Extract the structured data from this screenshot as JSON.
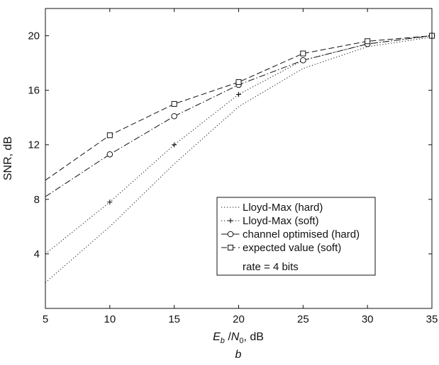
{
  "chart_data": {
    "type": "line",
    "xlabel_main": "E",
    "xlabel_main_sub": "b",
    "xlabel_sep": " /",
    "xlabel_den": "N",
    "xlabel_den_sub": "0",
    "xlabel_unit": ", dB",
    "ylabel": "SNR, dB",
    "caption": "b",
    "xlim": [
      5,
      35
    ],
    "ylim": [
      0,
      22
    ],
    "xticks": [
      5,
      10,
      15,
      20,
      25,
      30,
      35
    ],
    "yticks": [
      4,
      8,
      12,
      16,
      20
    ],
    "grid": false,
    "legend_position": "bottom-right",
    "legend_note": "rate = 4 bits",
    "series": [
      {
        "name": "Lloyd-Max (hard)",
        "style": "dotted",
        "marker": "none",
        "x": [
          5,
          10,
          15,
          20,
          25,
          30,
          35
        ],
        "y": [
          1.9,
          6.0,
          10.6,
          14.8,
          17.6,
          19.2,
          19.9
        ]
      },
      {
        "name": "Lloyd-Max (soft)",
        "style": "dotted",
        "marker": "plus",
        "x": [
          5,
          10,
          15,
          20,
          25,
          30,
          35
        ],
        "y": [
          4.0,
          7.8,
          12.0,
          15.7,
          18.2,
          19.4,
          20.0
        ]
      },
      {
        "name": "channel optimised (hard)",
        "style": "dashdot",
        "marker": "circle",
        "x": [
          5,
          10,
          15,
          20,
          25,
          30,
          35
        ],
        "y": [
          8.2,
          11.3,
          14.1,
          16.4,
          18.2,
          19.4,
          20.0
        ]
      },
      {
        "name": "expected value (soft)",
        "style": "dashed",
        "marker": "square",
        "x": [
          5,
          10,
          15,
          20,
          25,
          30,
          35
        ],
        "y": [
          9.4,
          12.7,
          15.0,
          16.6,
          18.7,
          19.6,
          20.0
        ]
      }
    ]
  }
}
